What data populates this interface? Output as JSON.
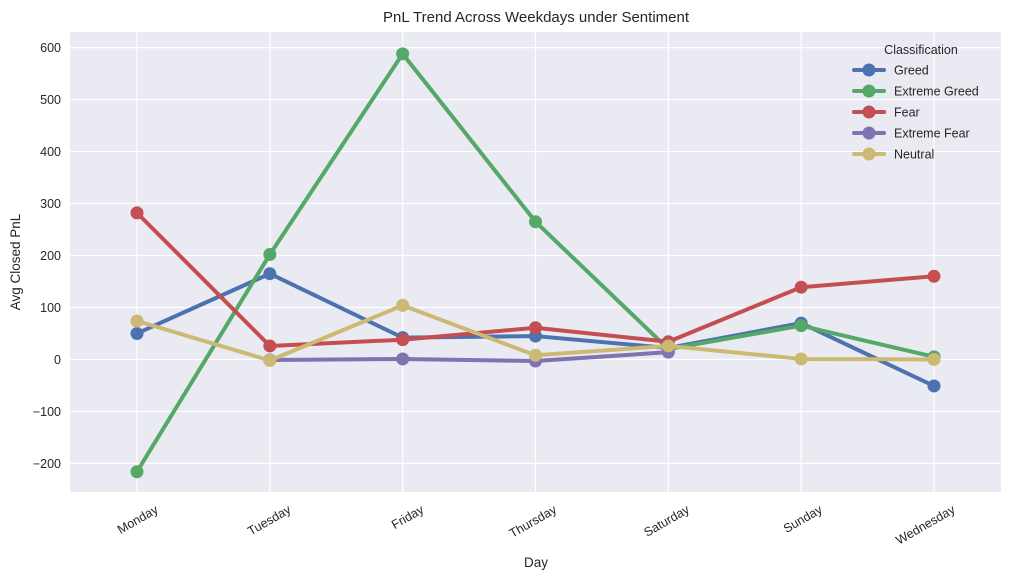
{
  "chart_data": {
    "type": "line",
    "title": "PnL Trend Across Weekdays under Sentiment",
    "xlabel": "Day",
    "ylabel": "Avg Closed PnL",
    "categories": [
      "Monday",
      "Tuesday",
      "Friday",
      "Thursday",
      "Saturday",
      "Sunday",
      "Wednesday"
    ],
    "yticks": [
      -200,
      -100,
      0,
      100,
      200,
      300,
      400,
      500,
      600
    ],
    "ylim": [
      -255,
      630
    ],
    "grid": true,
    "legend": {
      "title": "Classification",
      "placement": "top-right"
    },
    "series": [
      {
        "name": "Greed",
        "color": "#4c72b0",
        "values": [
          50,
          165,
          42,
          45,
          22,
          70,
          -51
        ]
      },
      {
        "name": "Extreme Greed",
        "color": "#55a868",
        "values": [
          -216,
          202,
          588,
          265,
          20,
          65,
          5
        ]
      },
      {
        "name": "Fear",
        "color": "#c44e52",
        "values": [
          282,
          26,
          38,
          61,
          34,
          139,
          160
        ]
      },
      {
        "name": "Extreme Fear",
        "color": "#8172b2",
        "values": [
          null,
          -1,
          1,
          -3,
          14,
          null,
          null
        ]
      },
      {
        "name": "Neutral",
        "color": "#ccb974",
        "values": [
          74,
          -2,
          104,
          8,
          26,
          1,
          0
        ]
      }
    ]
  }
}
